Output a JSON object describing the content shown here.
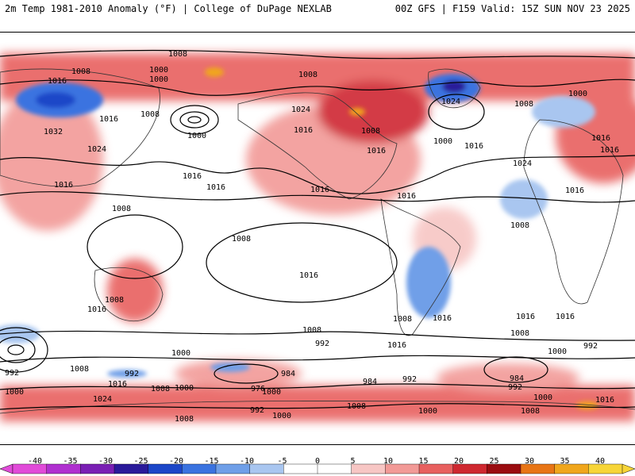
{
  "header": {
    "left": "2m Temp 1981-2010 Anomaly (°F) | College of DuPage NEXLAB",
    "right": "00Z GFS | F159 Valid: 15Z SUN NOV 23 2025"
  },
  "isobars": [
    {
      "text": "1008"
    },
    {
      "text": "1016"
    },
    {
      "text": "1000"
    },
    {
      "text": "1008"
    },
    {
      "text": "1024"
    },
    {
      "text": "1032"
    },
    {
      "text": "1016"
    },
    {
      "text": "1000"
    },
    {
      "text": "1016"
    },
    {
      "text": "1024"
    },
    {
      "text": "1016"
    },
    {
      "text": "1008"
    },
    {
      "text": "1008"
    },
    {
      "text": "1016"
    },
    {
      "text": "1000"
    },
    {
      "text": "1016"
    },
    {
      "text": "1024"
    },
    {
      "text": "1008"
    },
    {
      "text": "1000"
    },
    {
      "text": "1016"
    },
    {
      "text": "1016"
    },
    {
      "text": "1016"
    },
    {
      "text": "1016"
    },
    {
      "text": "1016"
    },
    {
      "text": "1024"
    },
    {
      "text": "1016"
    },
    {
      "text": "1008"
    },
    {
      "text": "1016"
    },
    {
      "text": "1008"
    },
    {
      "text": "1008"
    },
    {
      "text": "1008"
    },
    {
      "text": "1016"
    },
    {
      "text": "1016"
    },
    {
      "text": "1008"
    },
    {
      "text": "1016"
    },
    {
      "text": "1016"
    },
    {
      "text": "1016"
    },
    {
      "text": "1000"
    },
    {
      "text": "1008"
    },
    {
      "text": "1016"
    },
    {
      "text": "992"
    },
    {
      "text": "1000"
    },
    {
      "text": "992"
    },
    {
      "text": "1008"
    },
    {
      "text": "992"
    },
    {
      "text": "1016"
    },
    {
      "text": "1000"
    },
    {
      "text": "1024"
    },
    {
      "text": "1008"
    },
    {
      "text": "1000"
    },
    {
      "text": "976"
    },
    {
      "text": "984"
    },
    {
      "text": "984"
    },
    {
      "text": "992"
    },
    {
      "text": "1008"
    },
    {
      "text": "992"
    },
    {
      "text": "1000"
    },
    {
      "text": "1008"
    },
    {
      "text": "1000"
    },
    {
      "text": "1008"
    },
    {
      "text": "984"
    },
    {
      "text": "992"
    },
    {
      "text": "1000"
    },
    {
      "text": "1008"
    },
    {
      "text": "1000"
    },
    {
      "text": "1016"
    },
    {
      "text": "992"
    },
    {
      "text": "1008"
    },
    {
      "text": "1000"
    }
  ],
  "colorbar": {
    "labels": [
      "-40",
      "-35",
      "-30",
      "-25",
      "-20",
      "-15",
      "-10",
      "-5",
      "0",
      "5",
      "10",
      "15",
      "20",
      "25",
      "30",
      "35",
      "40"
    ],
    "colors": [
      "#e14bd9",
      "#b030d0",
      "#7a1fb4",
      "#2a1a9a",
      "#1c46c8",
      "#3a73e0",
      "#6f9fe8",
      "#a9c6f0",
      "#ffffff",
      "#ffffff",
      "#f7c6c4",
      "#f29a97",
      "#e8605f",
      "#cf2830",
      "#9a0c10",
      "#e87515",
      "#f0a61c",
      "#f7d538"
    ]
  }
}
